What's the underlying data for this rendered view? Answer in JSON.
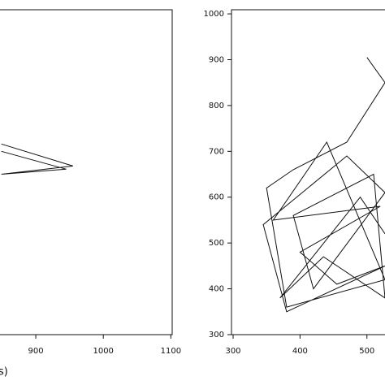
{
  "chart_data": [
    {
      "type": "line",
      "x_label": "s)",
      "x": [
        849,
        955,
        849,
        945,
        849
      ],
      "values": [
        716,
        668,
        650,
        661,
        700
      ],
      "color": "#111111",
      "xlim": [
        847,
        1102
      ],
      "xticks": [
        900,
        1000,
        1100
      ],
      "ylim": [
        300,
        1009
      ]
    },
    {
      "type": "line",
      "x": [
        500,
        527,
        470,
        390,
        350,
        380,
        527,
        440,
        360,
        520,
        400,
        455,
        527,
        380,
        345,
        470,
        527,
        420,
        390,
        510,
        527,
        435,
        370,
        490,
        527
      ],
      "values": [
        905,
        850,
        720,
        660,
        620,
        360,
        420,
        720,
        550,
        580,
        480,
        410,
        450,
        350,
        540,
        690,
        610,
        400,
        560,
        650,
        380,
        470,
        380,
        600,
        520
      ],
      "color": "#111111",
      "xlim": [
        300,
        527
      ],
      "xticks": [
        300,
        400,
        500
      ],
      "ylim": [
        300,
        1009
      ],
      "yticks": [
        300,
        400,
        500,
        600,
        700,
        800,
        900,
        1000
      ]
    }
  ]
}
